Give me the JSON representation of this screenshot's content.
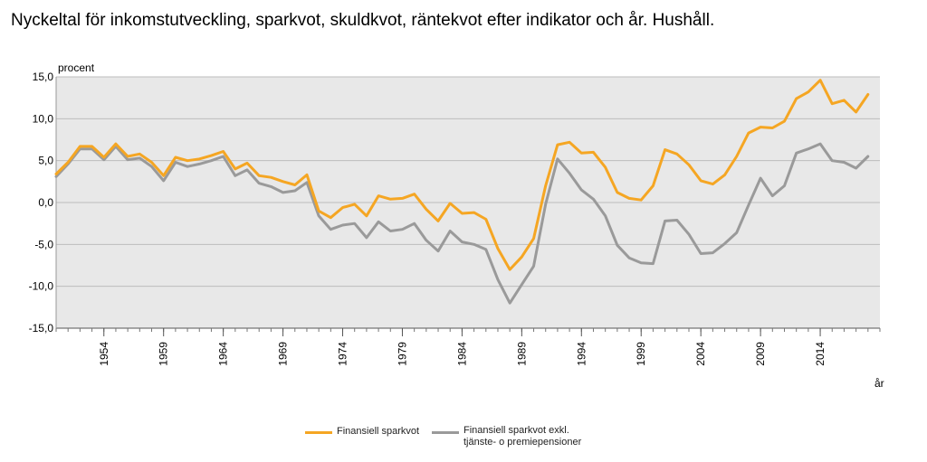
{
  "chart_data": {
    "type": "line",
    "title": "Nyckeltal för inkomstutveckling, sparkvot, skuldkvot, räntekvot efter indikator och år. Hushåll.",
    "ylabel": "procent",
    "xlabel": "år",
    "ylim": [
      -15,
      15
    ],
    "yticks": [
      15,
      10,
      5,
      0,
      -5,
      -10,
      -15
    ],
    "ytick_labels": [
      "15,0",
      "10,0",
      "5,0",
      "0,0",
      "-5,0",
      "-10,0",
      "-15,0"
    ],
    "xlim": [
      1950,
      2019
    ],
    "xticks": [
      1954,
      1959,
      1964,
      1969,
      1974,
      1979,
      1984,
      1989,
      1994,
      1999,
      2004,
      2009,
      2014
    ],
    "xtick_labels": [
      "1954",
      "1959",
      "1964",
      "1969",
      "1974",
      "1979",
      "1984",
      "1989",
      "1994",
      "1999",
      "2004",
      "2009",
      "2014"
    ],
    "grid": true,
    "background": "#e8e8e8",
    "legend_position": "bottom",
    "x": [
      1950,
      1951,
      1952,
      1953,
      1954,
      1955,
      1956,
      1957,
      1958,
      1959,
      1960,
      1961,
      1962,
      1963,
      1964,
      1965,
      1966,
      1967,
      1968,
      1969,
      1970,
      1971,
      1972,
      1973,
      1974,
      1975,
      1976,
      1977,
      1978,
      1979,
      1980,
      1981,
      1982,
      1983,
      1984,
      1985,
      1986,
      1987,
      1988,
      1989,
      1990,
      1991,
      1992,
      1993,
      1994,
      1995,
      1996,
      1997,
      1998,
      1999,
      2000,
      2001,
      2002,
      2003,
      2004,
      2005,
      2006,
      2007,
      2008,
      2009,
      2010,
      2011,
      2012,
      2013,
      2014,
      2015,
      2016,
      2017,
      2018
    ],
    "series": [
      {
        "name": "Finansiell sparkvot",
        "color": "#f5a623",
        "values": [
          3.4,
          4.8,
          6.7,
          6.7,
          5.4,
          7.0,
          5.5,
          5.8,
          4.8,
          3.2,
          5.4,
          5.0,
          5.2,
          5.6,
          6.1,
          4.0,
          4.7,
          3.2,
          3.0,
          2.5,
          2.1,
          3.3,
          -1.0,
          -1.8,
          -0.6,
          -0.2,
          -1.6,
          0.8,
          0.4,
          0.5,
          1.0,
          -0.8,
          -2.2,
          -0.1,
          -1.3,
          -1.2,
          -2.0,
          -5.5,
          -8.0,
          -6.5,
          -4.3,
          2.0,
          6.9,
          7.2,
          5.9,
          6.0,
          4.2,
          1.2,
          0.5,
          0.3,
          2.0,
          6.3,
          5.8,
          4.5,
          2.6,
          2.2,
          3.3,
          5.5,
          8.3,
          9.0,
          8.9,
          9.7,
          12.4,
          13.2,
          14.6,
          11.8,
          12.2,
          10.8,
          12.9
        ]
      },
      {
        "name": "Finansiell sparkvot exkl. tjänste- o premiepensioner",
        "name_lines": [
          "Finansiell sparkvot exkl.",
          "tjänste- o premiepensioner"
        ],
        "color": "#9a9a9a",
        "values": [
          3.1,
          4.6,
          6.4,
          6.4,
          5.1,
          6.7,
          5.1,
          5.3,
          4.3,
          2.6,
          4.8,
          4.3,
          4.6,
          5.0,
          5.5,
          3.2,
          3.9,
          2.3,
          1.9,
          1.2,
          1.4,
          2.4,
          -1.6,
          -3.2,
          -2.7,
          -2.5,
          -4.2,
          -2.3,
          -3.4,
          -3.2,
          -2.5,
          -4.5,
          -5.8,
          -3.4,
          -4.7,
          -5.0,
          -5.6,
          -9.2,
          -12.0,
          -9.8,
          -7.6,
          -0.2,
          5.2,
          3.5,
          1.5,
          0.4,
          -1.6,
          -5.1,
          -6.6,
          -7.2,
          -7.3,
          -2.2,
          -2.1,
          -3.8,
          -6.1,
          -6.0,
          -4.9,
          -3.6,
          -0.3,
          2.9,
          0.8,
          2.0,
          5.9,
          6.4,
          7.0,
          5.0,
          4.8,
          4.1,
          5.5
        ]
      }
    ]
  }
}
